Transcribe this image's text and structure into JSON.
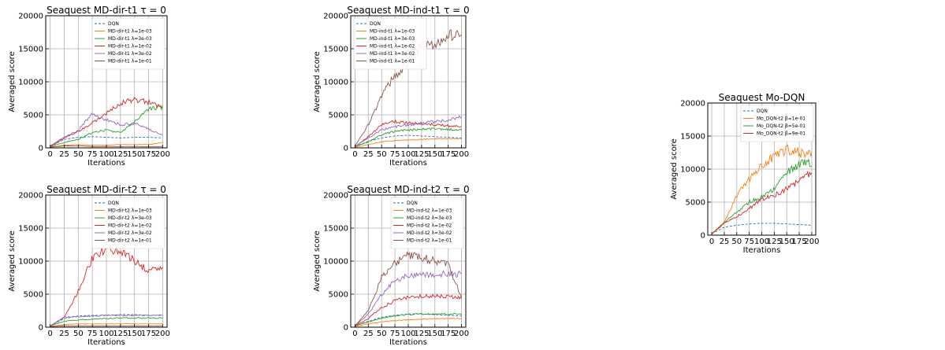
{
  "chart_data": [
    {
      "type": "line",
      "title": "Seaquest MD-dir-t1 τ = 0",
      "xlabel": "Iterations",
      "ylabel": "Averaged score",
      "xlim": [
        -8,
        208
      ],
      "ylim": [
        0,
        20000
      ],
      "xticks": [
        0,
        25,
        50,
        75,
        100,
        125,
        150,
        175,
        200
      ],
      "yticks": [
        0,
        5000,
        10000,
        15000,
        20000
      ],
      "grid": true,
      "legend_position": "top-right",
      "x": [
        0,
        25,
        50,
        75,
        100,
        125,
        150,
        175,
        200
      ],
      "series": [
        {
          "name": "DQN",
          "color": "#1f77b4",
          "dashed": true,
          "values": [
            200,
            1300,
            1600,
            1700,
            1600,
            1500,
            1600,
            1600,
            1500
          ]
        },
        {
          "name": "MD-dir-t1 λ=1e-03",
          "color": "#ff7f0e",
          "values": [
            100,
            400,
            500,
            400,
            400,
            500,
            500,
            500,
            800
          ]
        },
        {
          "name": "MD-dir-t1 λ=3e-03",
          "color": "#2ca02c",
          "values": [
            200,
            800,
            1300,
            2300,
            2700,
            2300,
            4000,
            5800,
            6200
          ]
        },
        {
          "name": "MD-dir-t1 λ=1e-02",
          "color": "#d62728",
          "values": [
            200,
            1500,
            2500,
            3800,
            5300,
            6700,
            7300,
            6900,
            6000
          ]
        },
        {
          "name": "MD-dir-t1 λ=3e-02",
          "color": "#9467bd",
          "values": [
            300,
            1700,
            2600,
            5300,
            4200,
            3500,
            3700,
            2800,
            1900
          ]
        },
        {
          "name": "MD-dir-t1 λ=1e-01",
          "color": "#8c564b",
          "values": [
            100,
            300,
            300,
            200,
            200,
            200,
            200,
            200,
            200
          ]
        }
      ]
    },
    {
      "type": "line",
      "title": "Seaquest MD-ind-t1 τ = 0",
      "xlabel": "Iterations",
      "ylabel": "Averaged score",
      "xlim": [
        -8,
        208
      ],
      "ylim": [
        0,
        20000
      ],
      "xticks": [
        0,
        25,
        50,
        75,
        100,
        125,
        150,
        175,
        200
      ],
      "yticks": [
        0,
        5000,
        10000,
        15000,
        20000
      ],
      "grid": true,
      "legend_position": "top-left",
      "x": [
        0,
        25,
        50,
        75,
        100,
        125,
        150,
        175,
        200
      ],
      "series": [
        {
          "name": "DQN",
          "color": "#1f77b4",
          "dashed": true,
          "values": [
            200,
            1000,
            1500,
            1800,
            1900,
            1800,
            1700,
            1600,
            1500
          ]
        },
        {
          "name": "MD-ind-t1 λ=1e-03",
          "color": "#ff7f0e",
          "values": [
            100,
            500,
            900,
            1100,
            1200,
            1300,
            1400,
            1400,
            1400
          ]
        },
        {
          "name": "MD-ind-t1 λ=3e-03",
          "color": "#2ca02c",
          "values": [
            200,
            900,
            2000,
            2500,
            2700,
            2800,
            2900,
            2800,
            2700
          ]
        },
        {
          "name": "MD-ind-t1 λ=1e-02",
          "color": "#d62728",
          "values": [
            200,
            1700,
            3500,
            4000,
            3800,
            3700,
            3500,
            3300,
            3200
          ]
        },
        {
          "name": "MD-ind-t1 λ=3e-02",
          "color": "#9467bd",
          "values": [
            200,
            1500,
            2700,
            3200,
            3500,
            3700,
            4000,
            4200,
            4800
          ]
        },
        {
          "name": "MD-ind-t1 λ=1e-01",
          "color": "#8c564b",
          "values": [
            300,
            3500,
            7800,
            11000,
            13000,
            15200,
            16000,
            16800,
            17300
          ]
        }
      ]
    },
    {
      "type": "line",
      "title": "Seaquest Mo-DQN",
      "xlabel": "Iterations",
      "ylabel": "Averaged score",
      "xlim": [
        -8,
        208
      ],
      "ylim": [
        0,
        20000
      ],
      "xticks": [
        0,
        25,
        50,
        75,
        100,
        125,
        150,
        175,
        200
      ],
      "yticks": [
        0,
        5000,
        10000,
        15000,
        20000
      ],
      "grid": true,
      "legend_position": "top-right",
      "x": [
        0,
        25,
        50,
        75,
        100,
        125,
        150,
        175,
        200
      ],
      "series": [
        {
          "name": "DQN",
          "color": "#1f77b4",
          "dashed": true,
          "values": [
            200,
            1200,
            1500,
            1700,
            1800,
            1800,
            1700,
            1600,
            1500
          ]
        },
        {
          "name": "Mo_DQN-t2 β=1e-01",
          "color": "#ff7f0e",
          "values": [
            200,
            2000,
            6000,
            8500,
            10500,
            12000,
            13000,
            12500,
            12000
          ]
        },
        {
          "name": "Mo_DQN-t2 β=5e-01",
          "color": "#2ca02c",
          "values": [
            200,
            1800,
            3500,
            5000,
            5800,
            7000,
            9500,
            10800,
            11000
          ]
        },
        {
          "name": "Mo_DQN-t2 β=9e-01",
          "color": "#d62728",
          "values": [
            200,
            1800,
            2800,
            4000,
            5500,
            6000,
            7000,
            8200,
            9500
          ]
        }
      ]
    },
    {
      "type": "line",
      "title": "Seaquest MD-dir-t2 τ = 0",
      "xlabel": "Iterations",
      "ylabel": "Averaged score",
      "xlim": [
        -8,
        208
      ],
      "ylim": [
        0,
        20000
      ],
      "xticks": [
        0,
        25,
        50,
        75,
        100,
        125,
        150,
        175,
        200
      ],
      "yticks": [
        0,
        5000,
        10000,
        15000,
        20000
      ],
      "grid": true,
      "legend_position": "top-right",
      "x": [
        0,
        25,
        50,
        75,
        100,
        125,
        150,
        175,
        200
      ],
      "series": [
        {
          "name": "DQN",
          "color": "#1f77b4",
          "dashed": true,
          "values": [
            200,
            1300,
            1700,
            1800,
            1800,
            1900,
            1900,
            1800,
            1800
          ]
        },
        {
          "name": "MD-dir-t2 λ=1e-03",
          "color": "#ff7f0e",
          "values": [
            100,
            400,
            500,
            500,
            500,
            500,
            500,
            500,
            500
          ]
        },
        {
          "name": "MD-dir-t2 λ=3e-03",
          "color": "#2ca02c",
          "values": [
            200,
            900,
            1100,
            1200,
            1300,
            1400,
            1400,
            1400,
            1400
          ]
        },
        {
          "name": "MD-dir-t2 λ=1e-02",
          "color": "#d62728",
          "values": [
            200,
            1500,
            5500,
            10500,
            12000,
            11500,
            10000,
            8500,
            9000
          ]
        },
        {
          "name": "MD-dir-t2 λ=3e-02",
          "color": "#9467bd",
          "values": [
            200,
            1500,
            1600,
            1700,
            1800,
            1800,
            1800,
            1800,
            1800
          ]
        },
        {
          "name": "MD-dir-t2 λ=1e-01",
          "color": "#8c564b",
          "values": [
            100,
            200,
            200,
            200,
            200,
            200,
            200,
            200,
            200
          ]
        }
      ]
    },
    {
      "type": "line",
      "title": "Seaquest MD-ind-t2 τ = 0",
      "xlabel": "Iterations",
      "ylabel": "Averaged score",
      "xlim": [
        -8,
        208
      ],
      "ylim": [
        0,
        20000
      ],
      "xticks": [
        0,
        25,
        50,
        75,
        100,
        125,
        150,
        175,
        200
      ],
      "yticks": [
        0,
        5000,
        10000,
        15000,
        20000
      ],
      "grid": true,
      "legend_position": "top-right",
      "x": [
        0,
        25,
        50,
        75,
        100,
        125,
        150,
        175,
        200
      ],
      "series": [
        {
          "name": "DQN",
          "color": "#1f77b4",
          "dashed": true,
          "values": [
            200,
            900,
            1500,
            1800,
            2000,
            2000,
            1900,
            1800,
            1700
          ]
        },
        {
          "name": "MD-ind-t2 λ=1e-03",
          "color": "#ff7f0e",
          "values": [
            100,
            500,
            800,
            1000,
            1100,
            1200,
            1300,
            1300,
            1300
          ]
        },
        {
          "name": "MD-ind-t2 λ=3e-03",
          "color": "#2ca02c",
          "values": [
            200,
            800,
            1400,
            1700,
            1900,
            2000,
            2000,
            2000,
            2000
          ]
        },
        {
          "name": "MD-ind-t2 λ=1e-02",
          "color": "#d62728",
          "values": [
            200,
            1300,
            3000,
            4000,
            4500,
            4700,
            4700,
            4600,
            4500
          ]
        },
        {
          "name": "MD-ind-t2 λ=3e-02",
          "color": "#9467bd",
          "values": [
            200,
            2000,
            5000,
            7000,
            7800,
            8000,
            8000,
            8100,
            8000
          ]
        },
        {
          "name": "MD-ind-t2 λ=1e-01",
          "color": "#8c564b",
          "values": [
            200,
            2500,
            7500,
            9800,
            10800,
            10500,
            10000,
            9500,
            4500
          ]
        }
      ]
    }
  ]
}
